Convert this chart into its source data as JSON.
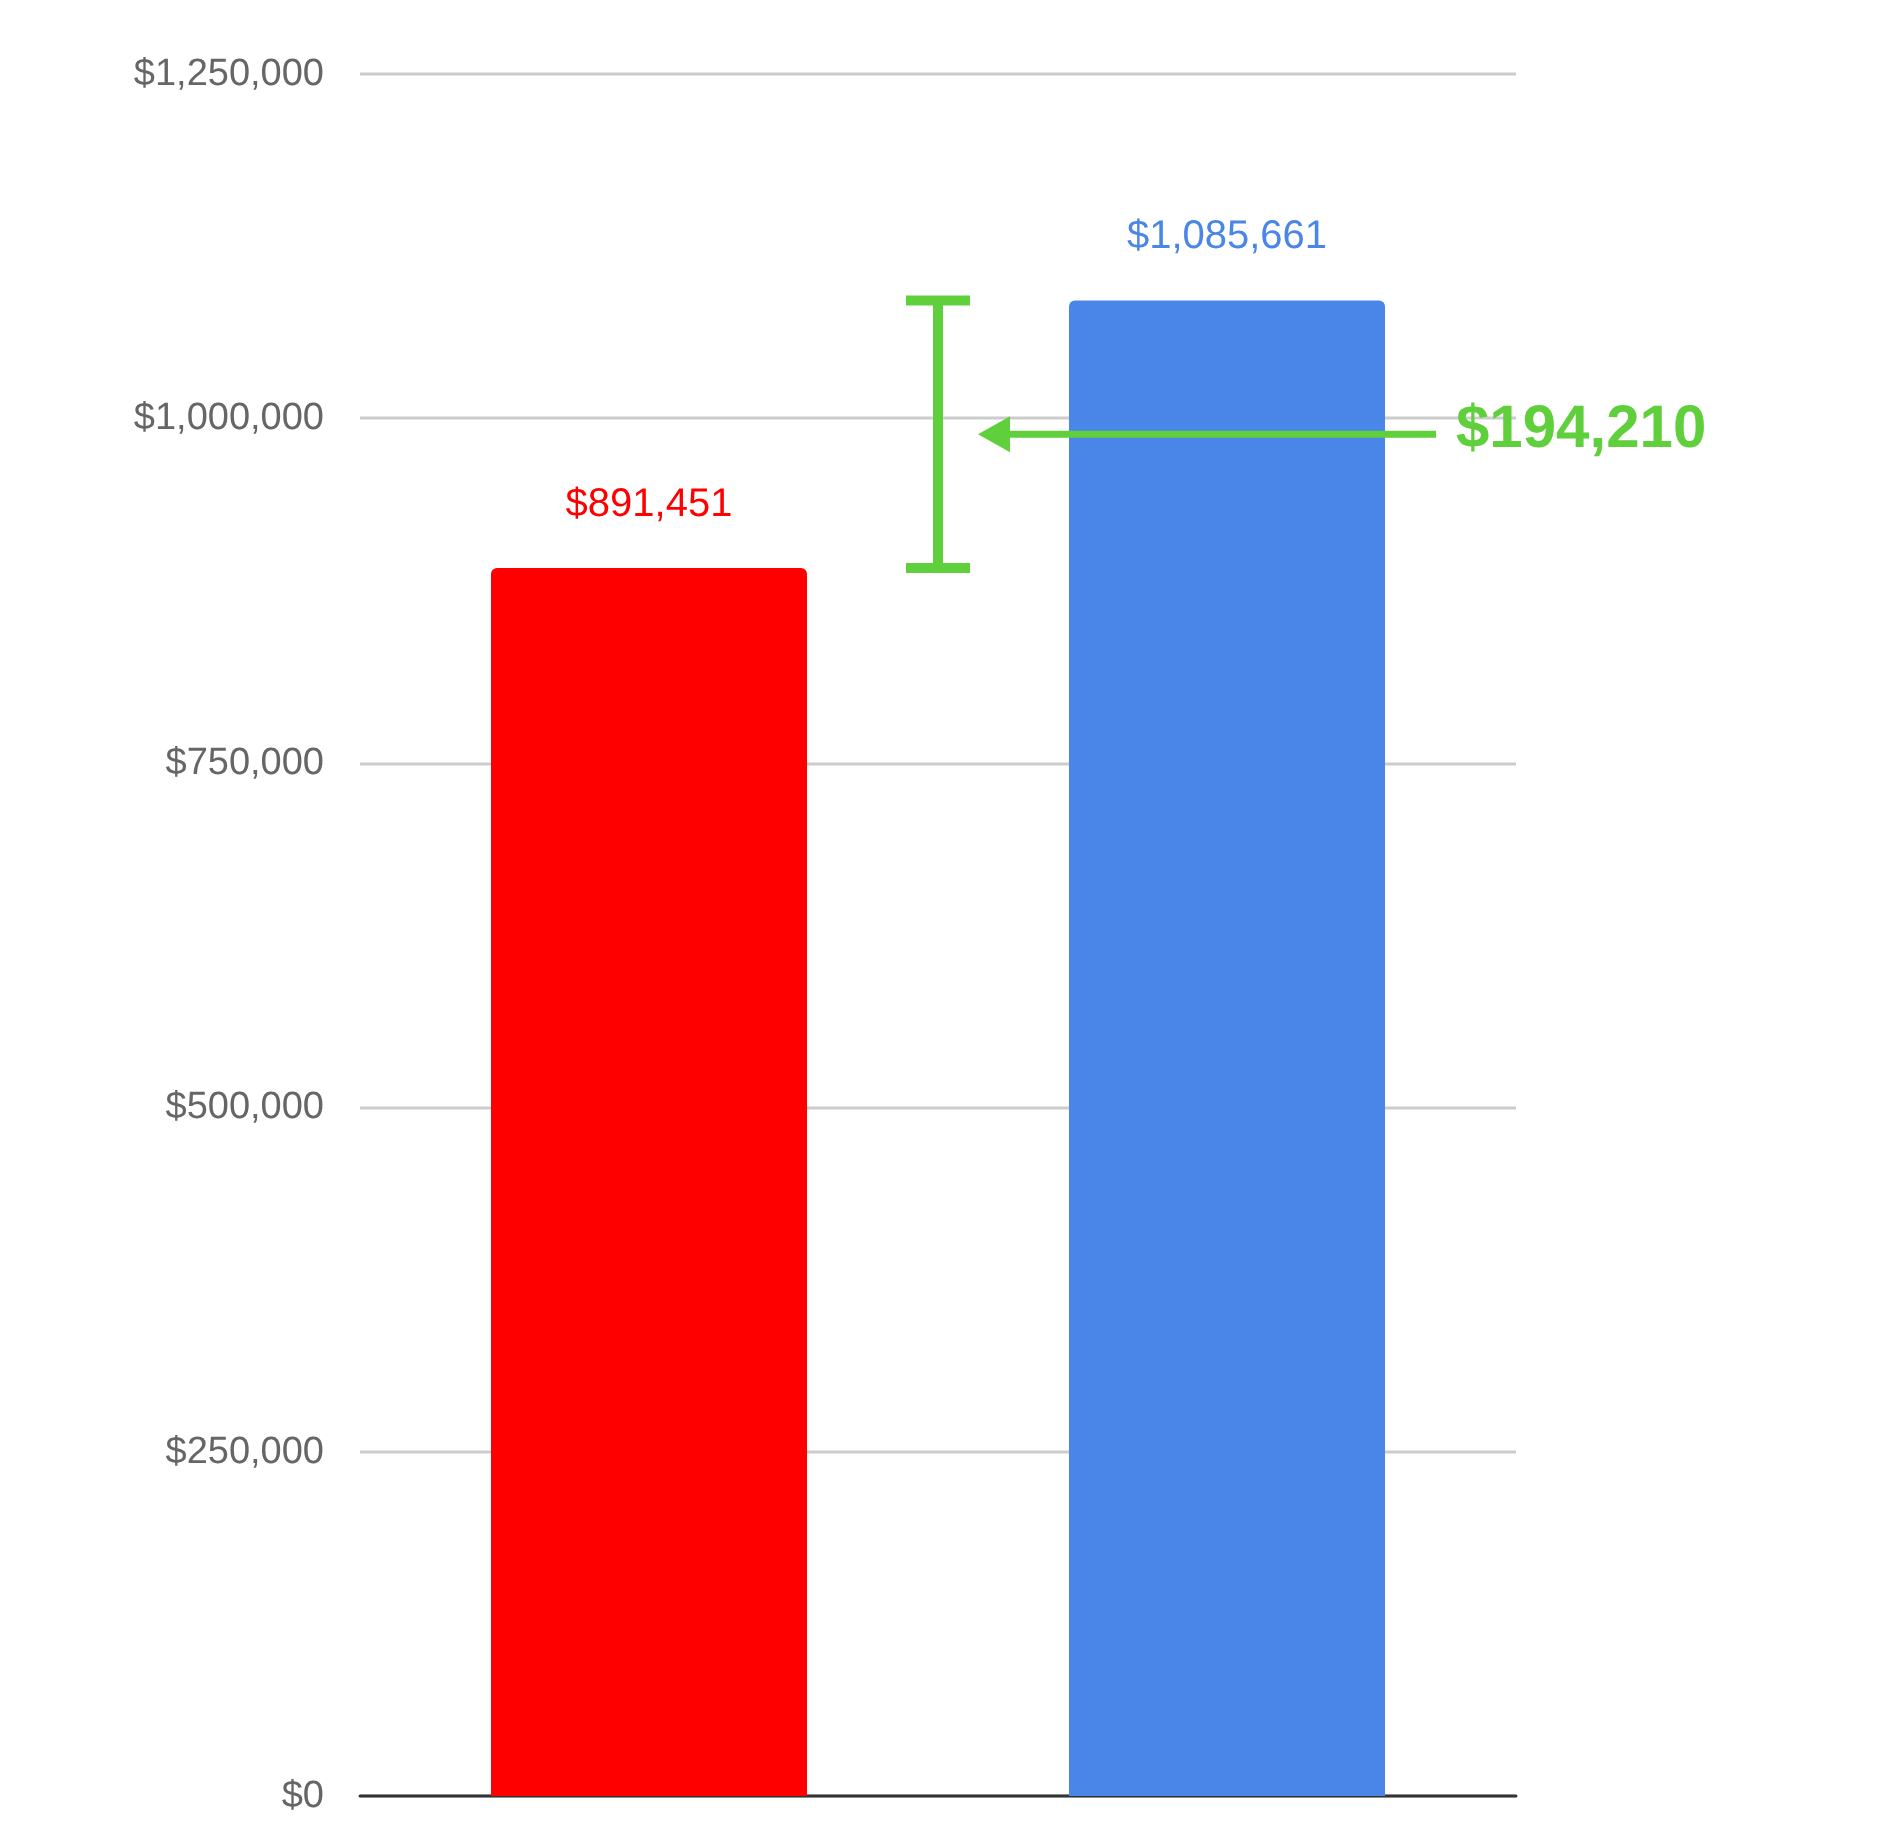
{
  "chart_data": {
    "type": "bar",
    "categories": [
      null,
      null
    ],
    "values": [
      891451,
      1085661
    ],
    "colors": [
      "#ff0000",
      "#4a86e8"
    ],
    "value_labels": [
      "$891,451",
      "$1,085,661"
    ],
    "ylim": [
      0,
      1250000
    ],
    "yticks": [
      {
        "value": 0,
        "label": "$0"
      },
      {
        "value": 250000,
        "label": "$250,000"
      },
      {
        "value": 500000,
        "label": "$500,000"
      },
      {
        "value": 750000,
        "label": "$750,000"
      },
      {
        "value": 1000000,
        "label": "$1,000,000"
      },
      {
        "value": 1250000,
        "label": "$1,250,000"
      }
    ],
    "grid": "y",
    "annotations": [
      "$194,210"
    ]
  }
}
